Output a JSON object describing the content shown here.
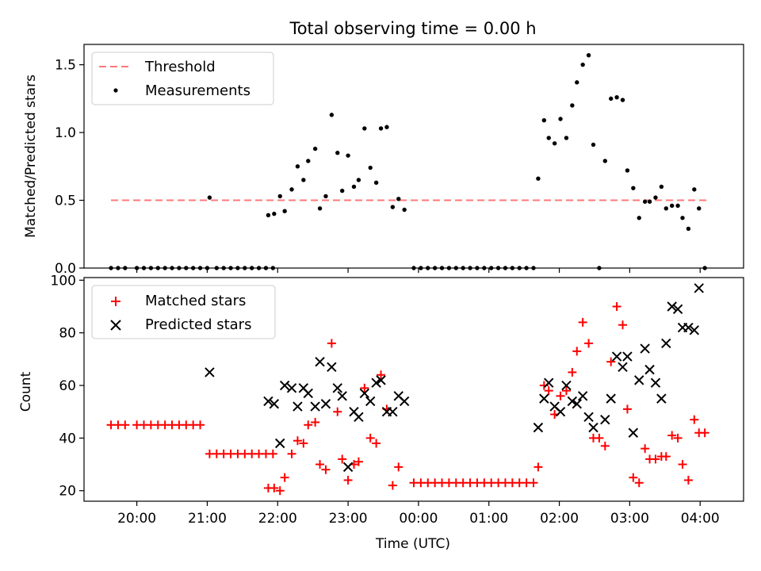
{
  "figure": {
    "title": "Total observing time = 0.00 h",
    "xlabel": "Time (UTC)"
  },
  "chart_data": [
    {
      "type": "scatter",
      "title": "Total observing time = 0.00 h",
      "xlabel": "",
      "ylabel": "Matched/Predicted stars",
      "ylim": [
        0,
        1.65
      ],
      "yticks": [
        "0.0",
        "0.5",
        "1.0",
        "1.5"
      ],
      "xticks_labels": [],
      "legend_position": "upper-left",
      "threshold": {
        "name": "Threshold",
        "value": 0.5,
        "x_start": "19:38",
        "x_end": "04:08",
        "color": "#ff7777"
      },
      "series": [
        {
          "name": "Measurements",
          "color": "#000000",
          "points": [
            [
              "19:38",
              0
            ],
            [
              "19:44",
              0
            ],
            [
              "19:50",
              0
            ],
            [
              "20:00",
              0
            ],
            [
              "20:06",
              0
            ],
            [
              "20:12",
              0
            ],
            [
              "20:18",
              0
            ],
            [
              "20:24",
              0
            ],
            [
              "20:30",
              0
            ],
            [
              "20:36",
              0
            ],
            [
              "20:42",
              0
            ],
            [
              "20:48",
              0
            ],
            [
              "20:54",
              0
            ],
            [
              "21:00",
              0
            ],
            [
              "21:02",
              0.52
            ],
            [
              "21:08",
              0
            ],
            [
              "21:14",
              0
            ],
            [
              "21:20",
              0
            ],
            [
              "21:26",
              0
            ],
            [
              "21:32",
              0
            ],
            [
              "21:38",
              0
            ],
            [
              "21:44",
              0
            ],
            [
              "21:50",
              0
            ],
            [
              "21:56",
              0
            ],
            [
              "21:52",
              0.39
            ],
            [
              "21:57",
              0.4
            ],
            [
              "22:02",
              0.53
            ],
            [
              "22:06",
              0.42
            ],
            [
              "22:12",
              0.58
            ],
            [
              "22:17",
              0.75
            ],
            [
              "22:22",
              0.65
            ],
            [
              "22:26",
              0.79
            ],
            [
              "22:32",
              0.88
            ],
            [
              "22:36",
              0.44
            ],
            [
              "22:41",
              0.53
            ],
            [
              "22:46",
              1.13
            ],
            [
              "22:51",
              0.85
            ],
            [
              "22:55",
              0.57
            ],
            [
              "23:00",
              0.83
            ],
            [
              "23:05",
              0.6
            ],
            [
              "23:09",
              0.65
            ],
            [
              "23:14",
              1.03
            ],
            [
              "23:19",
              0.74
            ],
            [
              "23:24",
              0.63
            ],
            [
              "23:28",
              1.03
            ],
            [
              "23:33",
              1.04
            ],
            [
              "23:38",
              0.45
            ],
            [
              "23:43",
              0.51
            ],
            [
              "23:48",
              0.43
            ],
            [
              "23:56",
              0
            ],
            [
              "00:02",
              0
            ],
            [
              "00:08",
              0
            ],
            [
              "00:14",
              0
            ],
            [
              "00:20",
              0
            ],
            [
              "00:26",
              0
            ],
            [
              "00:32",
              0
            ],
            [
              "00:38",
              0
            ],
            [
              "00:44",
              0
            ],
            [
              "00:50",
              0
            ],
            [
              "00:56",
              0
            ],
            [
              "01:02",
              0
            ],
            [
              "01:08",
              0
            ],
            [
              "01:14",
              0
            ],
            [
              "01:20",
              0
            ],
            [
              "01:26",
              0
            ],
            [
              "01:32",
              0
            ],
            [
              "01:38",
              0
            ],
            [
              "01:42",
              0.66
            ],
            [
              "01:47",
              1.09
            ],
            [
              "01:51",
              0.96
            ],
            [
              "01:56",
              0.92
            ],
            [
              "02:01",
              1.1
            ],
            [
              "02:06",
              0.96
            ],
            [
              "02:11",
              1.2
            ],
            [
              "02:15",
              1.37
            ],
            [
              "02:20",
              1.5
            ],
            [
              "02:25",
              1.57
            ],
            [
              "02:29",
              0.91
            ],
            [
              "02:34",
              0
            ],
            [
              "02:39",
              0.79
            ],
            [
              "02:44",
              1.25
            ],
            [
              "02:49",
              1.26
            ],
            [
              "02:54",
              1.24
            ],
            [
              "02:58",
              0.72
            ],
            [
              "03:03",
              0.59
            ],
            [
              "03:08",
              0.37
            ],
            [
              "03:13",
              0.49
            ],
            [
              "03:17",
              0.49
            ],
            [
              "03:22",
              0.52
            ],
            [
              "03:27",
              0.6
            ],
            [
              "03:31",
              0.44
            ],
            [
              "03:36",
              0.46
            ],
            [
              "03:41",
              0.46
            ],
            [
              "03:45",
              0.37
            ],
            [
              "03:50",
              0.29
            ],
            [
              "03:55",
              0.58
            ],
            [
              "03:59",
              0.44
            ],
            [
              "04:04",
              0
            ]
          ]
        }
      ]
    },
    {
      "type": "scatter",
      "title": "",
      "xlabel": "Time (UTC)",
      "ylabel": "Count",
      "ylim": [
        16,
        101
      ],
      "yticks": [
        "20",
        "40",
        "60",
        "80",
        "100"
      ],
      "xticks_labels": [
        "20:00",
        "21:00",
        "22:00",
        "23:00",
        "00:00",
        "01:00",
        "02:00",
        "03:00",
        "04:00"
      ],
      "legend_position": "upper-left",
      "series": [
        {
          "name": "Matched stars",
          "marker": "plus",
          "color": "#ff0000",
          "points": [
            [
              "19:38",
              45
            ],
            [
              "19:44",
              45
            ],
            [
              "19:50",
              45
            ],
            [
              "20:00",
              45
            ],
            [
              "20:06",
              45
            ],
            [
              "20:12",
              45
            ],
            [
              "20:18",
              45
            ],
            [
              "20:24",
              45
            ],
            [
              "20:30",
              45
            ],
            [
              "20:36",
              45
            ],
            [
              "20:42",
              45
            ],
            [
              "20:48",
              45
            ],
            [
              "20:54",
              45
            ],
            [
              "21:02",
              34
            ],
            [
              "21:08",
              34
            ],
            [
              "21:14",
              34
            ],
            [
              "21:20",
              34
            ],
            [
              "21:26",
              34
            ],
            [
              "21:32",
              34
            ],
            [
              "21:38",
              34
            ],
            [
              "21:44",
              34
            ],
            [
              "21:50",
              34
            ],
            [
              "21:56",
              34
            ],
            [
              "21:52",
              21
            ],
            [
              "21:57",
              21
            ],
            [
              "22:02",
              20
            ],
            [
              "22:06",
              25
            ],
            [
              "22:12",
              34
            ],
            [
              "22:17",
              39
            ],
            [
              "22:22",
              38
            ],
            [
              "22:26",
              45
            ],
            [
              "22:32",
              46
            ],
            [
              "22:36",
              30
            ],
            [
              "22:41",
              28
            ],
            [
              "22:46",
              76
            ],
            [
              "22:51",
              50
            ],
            [
              "22:55",
              32
            ],
            [
              "23:00",
              24
            ],
            [
              "23:05",
              30
            ],
            [
              "23:09",
              31
            ],
            [
              "23:14",
              59
            ],
            [
              "23:19",
              40
            ],
            [
              "23:24",
              38
            ],
            [
              "23:28",
              64
            ],
            [
              "23:33",
              51
            ],
            [
              "23:38",
              22
            ],
            [
              "23:43",
              29
            ],
            [
              "23:56",
              23
            ],
            [
              "00:02",
              23
            ],
            [
              "00:08",
              23
            ],
            [
              "00:14",
              23
            ],
            [
              "00:20",
              23
            ],
            [
              "00:26",
              23
            ],
            [
              "00:32",
              23
            ],
            [
              "00:38",
              23
            ],
            [
              "00:44",
              23
            ],
            [
              "00:50",
              23
            ],
            [
              "00:56",
              23
            ],
            [
              "01:02",
              23
            ],
            [
              "01:08",
              23
            ],
            [
              "01:14",
              23
            ],
            [
              "01:20",
              23
            ],
            [
              "01:26",
              23
            ],
            [
              "01:32",
              23
            ],
            [
              "01:38",
              23
            ],
            [
              "01:42",
              29
            ],
            [
              "01:47",
              60
            ],
            [
              "01:51",
              58
            ],
            [
              "01:56",
              49
            ],
            [
              "02:01",
              56
            ],
            [
              "02:06",
              58
            ],
            [
              "02:11",
              65
            ],
            [
              "02:15",
              73
            ],
            [
              "02:20",
              84
            ],
            [
              "02:25",
              76
            ],
            [
              "02:29",
              40
            ],
            [
              "02:34",
              40
            ],
            [
              "02:39",
              37
            ],
            [
              "02:44",
              69
            ],
            [
              "02:49",
              90
            ],
            [
              "02:54",
              83
            ],
            [
              "02:58",
              51
            ],
            [
              "03:03",
              25
            ],
            [
              "03:08",
              23
            ],
            [
              "03:13",
              36
            ],
            [
              "03:17",
              32
            ],
            [
              "03:22",
              32
            ],
            [
              "03:27",
              33
            ],
            [
              "03:31",
              33
            ],
            [
              "03:36",
              41
            ],
            [
              "03:41",
              40
            ],
            [
              "03:45",
              30
            ],
            [
              "03:50",
              24
            ],
            [
              "03:55",
              47
            ],
            [
              "03:59",
              42
            ],
            [
              "04:04",
              42
            ]
          ]
        },
        {
          "name": "Predicted stars",
          "marker": "x",
          "color": "#000000",
          "points": [
            [
              "21:02",
              65
            ],
            [
              "21:52",
              54
            ],
            [
              "21:57",
              53
            ],
            [
              "22:02",
              38
            ],
            [
              "22:06",
              60
            ],
            [
              "22:12",
              59
            ],
            [
              "22:17",
              52
            ],
            [
              "22:22",
              59
            ],
            [
              "22:26",
              57
            ],
            [
              "22:32",
              52
            ],
            [
              "22:36",
              69
            ],
            [
              "22:41",
              53
            ],
            [
              "22:46",
              67
            ],
            [
              "22:51",
              59
            ],
            [
              "22:55",
              56
            ],
            [
              "23:00",
              29
            ],
            [
              "23:05",
              50
            ],
            [
              "23:09",
              48
            ],
            [
              "23:14",
              57
            ],
            [
              "23:19",
              54
            ],
            [
              "23:24",
              61
            ],
            [
              "23:28",
              62
            ],
            [
              "23:33",
              50
            ],
            [
              "23:38",
              50
            ],
            [
              "23:43",
              56
            ],
            [
              "23:48",
              54
            ],
            [
              "01:42",
              44
            ],
            [
              "01:47",
              55
            ],
            [
              "01:51",
              61
            ],
            [
              "01:56",
              52
            ],
            [
              "02:01",
              50
            ],
            [
              "02:06",
              60
            ],
            [
              "02:11",
              54
            ],
            [
              "02:15",
              53
            ],
            [
              "02:20",
              56
            ],
            [
              "02:25",
              48
            ],
            [
              "02:29",
              44
            ],
            [
              "02:39",
              47
            ],
            [
              "02:44",
              55
            ],
            [
              "02:49",
              71
            ],
            [
              "02:54",
              67
            ],
            [
              "02:58",
              71
            ],
            [
              "03:03",
              42
            ],
            [
              "03:08",
              62
            ],
            [
              "03:13",
              74
            ],
            [
              "03:17",
              66
            ],
            [
              "03:22",
              61
            ],
            [
              "03:27",
              55
            ],
            [
              "03:31",
              76
            ],
            [
              "03:36",
              90
            ],
            [
              "03:41",
              89
            ],
            [
              "03:45",
              82
            ],
            [
              "03:50",
              82
            ],
            [
              "03:55",
              81
            ],
            [
              "03:59",
              97
            ]
          ]
        }
      ]
    }
  ]
}
